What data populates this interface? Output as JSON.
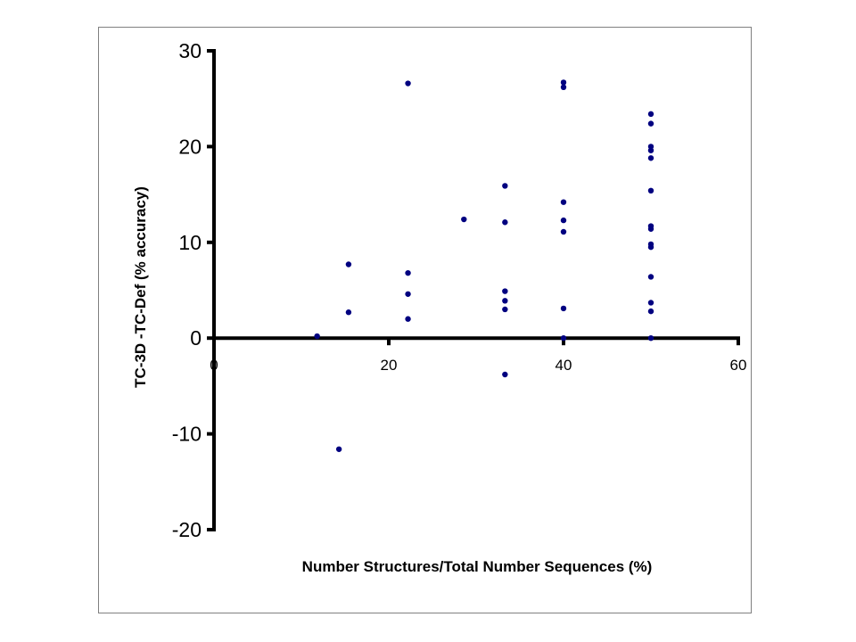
{
  "chart_data": {
    "type": "scatter",
    "title": "",
    "xlabel": "Number Structures/Total Number Sequences (%)",
    "ylabel": "TC-3D -TC-Def (% accuracy)",
    "xlim": [
      0,
      60
    ],
    "ylim": [
      -20,
      30
    ],
    "x_ticks": [
      0,
      20,
      40,
      60
    ],
    "y_ticks": [
      -20,
      -10,
      0,
      10,
      20,
      30
    ],
    "grid": false,
    "legend": "none",
    "series": [
      {
        "color": "#000080",
        "points": [
          [
            11.8,
            0.2
          ],
          [
            14.3,
            -11.6
          ],
          [
            15.4,
            7.7
          ],
          [
            15.4,
            2.7
          ],
          [
            22.2,
            26.6
          ],
          [
            22.2,
            6.8
          ],
          [
            22.2,
            4.6
          ],
          [
            22.2,
            2.0
          ],
          [
            28.6,
            12.4
          ],
          [
            33.3,
            15.9
          ],
          [
            33.3,
            12.1
          ],
          [
            33.3,
            4.9
          ],
          [
            33.3,
            3.9
          ],
          [
            33.3,
            3.0
          ],
          [
            33.3,
            -3.8
          ],
          [
            40.0,
            26.7
          ],
          [
            40.0,
            26.2
          ],
          [
            40.0,
            14.2
          ],
          [
            40.0,
            12.3
          ],
          [
            40.0,
            11.1
          ],
          [
            40.0,
            3.1
          ],
          [
            40.0,
            0.0
          ],
          [
            50.0,
            23.4
          ],
          [
            50.0,
            22.4
          ],
          [
            50.0,
            20.0
          ],
          [
            50.0,
            19.6
          ],
          [
            50.0,
            18.8
          ],
          [
            50.0,
            15.4
          ],
          [
            50.0,
            11.7
          ],
          [
            50.0,
            11.4
          ],
          [
            50.0,
            9.8
          ],
          [
            50.0,
            9.5
          ],
          [
            50.0,
            6.4
          ],
          [
            50.0,
            3.7
          ],
          [
            50.0,
            2.8
          ],
          [
            50.0,
            0.0
          ]
        ]
      }
    ]
  }
}
